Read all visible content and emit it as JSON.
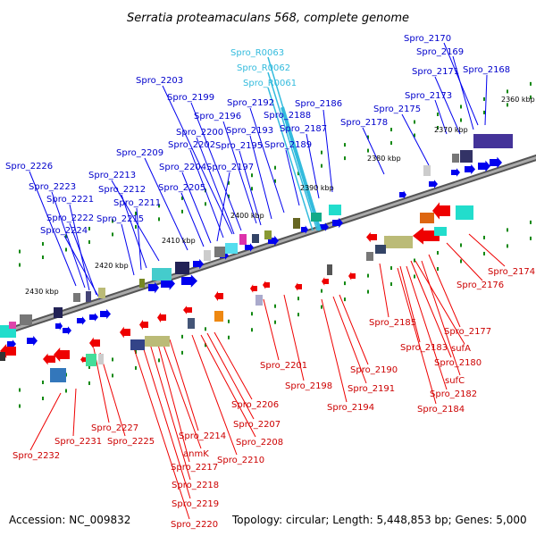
{
  "title": "Serratia proteamaculans 568, complete genome",
  "footer": {
    "accession": "Accession: NC_009832",
    "summary": "Topology: circular; Length: 5,448,853 bp; Genes: 5,000"
  },
  "colors": {
    "forward_genes": "#0000ee",
    "reverse_genes": "#ee0000",
    "rna_genes": "#33bbdd",
    "backbone": "#888888",
    "ticks": "#118811"
  },
  "scale_labels": [
    "2360 kbp",
    "2370 kbp",
    "2380 kbp",
    "2390 kbp",
    "2400 kbp",
    "2410 kbp",
    "2420 kbp",
    "2430 kbp"
  ],
  "forward_labels": [
    "Spro_2170",
    "Spro_2169",
    "Spro_2171",
    "Spro_2168",
    "Spro_2173",
    "Spro_2175",
    "Spro_2178",
    "Spro_2186",
    "Spro_2188",
    "Spro_2187",
    "Spro_2189",
    "Spro_2192",
    "Spro_2193",
    "Spro_2195",
    "Spro_2196",
    "Spro_2199",
    "Spro_2203",
    "Spro_2200",
    "Spro_2202",
    "Spro_2197",
    "Spro_2204",
    "Spro_2205",
    "Spro_2209",
    "Spro_2213",
    "Spro_2212",
    "Spro_2211",
    "Spro_2215",
    "Spro_2226",
    "Spro_2223",
    "Spro_2221",
    "Spro_2222",
    "Spro_2224"
  ],
  "rna_labels": [
    "Spro_R0063",
    "Spro_R0062",
    "Spro_R0061"
  ],
  "reverse_labels": [
    "Spro_2174",
    "Spro_2176",
    "Spro_2177",
    "Spro_2185",
    "sufA",
    "Spro_2183",
    "Spro_2180",
    "sufC",
    "Spro_2182",
    "Spro_2184",
    "Spro_2190",
    "Spro_2191",
    "Spro_2194",
    "Spro_2201",
    "Spro_2198",
    "Spro_2206",
    "Spro_2207",
    "Spro_2208",
    "Spro_2210",
    "Spro_2214",
    "anmK",
    "Spro_2217",
    "Spro_2218",
    "Spro_2219",
    "Spro_2220",
    "Spro_2227",
    "Spro_2225",
    "Spro_2231",
    "Spro_2232"
  ]
}
